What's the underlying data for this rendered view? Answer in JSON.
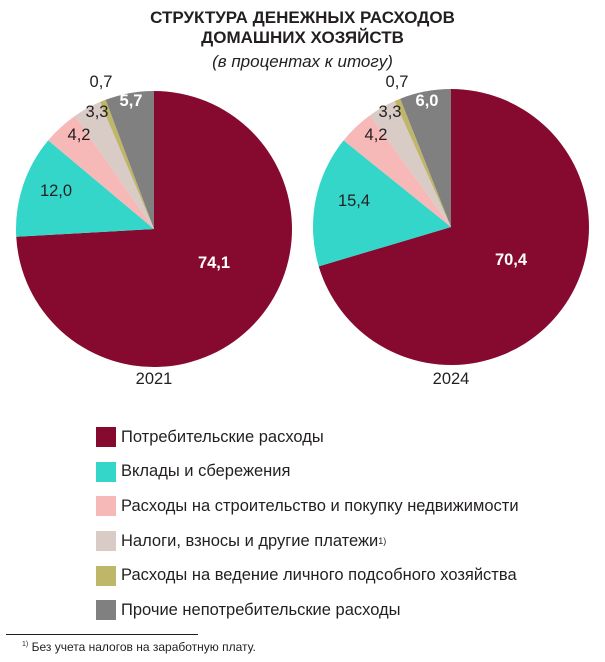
{
  "title_line1": "СТРУКТУРА ДЕНЕЖНЫХ РАСХОДОВ",
  "title_line2": "ДОМАШНИХ ХОЗЯЙСТВ",
  "subtitle": "(в процентах к итогу)",
  "footnote_mark": "1)",
  "footnote": "Без учета налогов на заработную плату.",
  "chart_data": {
    "type": "pie",
    "title": "СТРУКТУРА ДЕНЕЖНЫХ РАСХОДОВ ДОМАШНИХ ХОЗЯЙСТВ (в процентах к итогу)",
    "categories": [
      "Потребительские расходы",
      "Вклады и сбережения",
      "Расходы на строительство и покупку недвижимости",
      "Налоги, взносы и другие платежи",
      "Расходы на ведение личного подсобного хозяйства",
      "Прочие непотребительские расходы"
    ],
    "legend_superscripts": [
      "",
      "",
      "",
      "1)",
      "",
      ""
    ],
    "colors": [
      "#860a2f",
      "#33d6c8",
      "#f7b8b8",
      "#d9cbc6",
      "#bfb66a",
      "#808080"
    ],
    "legend_position": "bottom",
    "series": [
      {
        "name": "2021",
        "values": [
          74.1,
          12.0,
          4.2,
          3.3,
          0.7,
          5.7
        ],
        "labels": [
          "74,1",
          "12,0",
          "4,2",
          "3,3",
          "0,7",
          "5,7"
        ]
      },
      {
        "name": "2024",
        "values": [
          70.4,
          15.4,
          4.2,
          3.3,
          0.7,
          6.0
        ],
        "labels": [
          "70,4",
          "15,4",
          "4,2",
          "3,3",
          "0,7",
          "6,0"
        ]
      }
    ]
  }
}
